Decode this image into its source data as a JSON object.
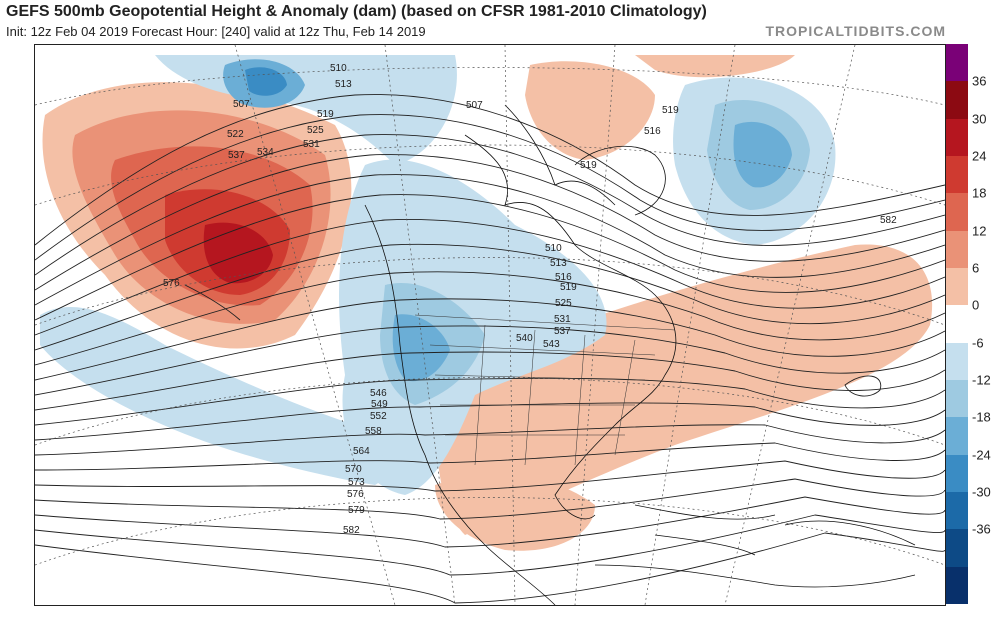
{
  "header": {
    "title": "GEFS 500mb Geopotential Height & Anomaly (dam) (based on CFSR 1981-2010 Climatology)",
    "subtitle": "Init: 12z Feb 04 2019   Forecast Hour: [240]   valid at 12z Thu, Feb 14 2019",
    "credit": "TROPICALTIDBITS.COM"
  },
  "colorbar": {
    "labels": [
      "36",
      "30",
      "24",
      "18",
      "12",
      "6",
      "0",
      "-6",
      "-12",
      "-18",
      "-24",
      "-30",
      "-36"
    ],
    "colors": [
      "#7a0177",
      "#8c0a12",
      "#b5161f",
      "#cf3a30",
      "#de6650",
      "#ea9277",
      "#f4c0a6",
      "#ffffff",
      "#c5dfee",
      "#9ecae1",
      "#6baed6",
      "#3a8cc4",
      "#1c6aa8",
      "#0d4a86",
      "#08306b"
    ]
  },
  "map": {
    "contour_labels": [
      "510",
      "513",
      "507",
      "519",
      "522",
      "525",
      "531",
      "534",
      "537",
      "576",
      "507",
      "519",
      "516",
      "519",
      "510",
      "513",
      "516",
      "519",
      "525",
      "531",
      "537",
      "540",
      "543",
      "546",
      "549",
      "552",
      "558",
      "564",
      "570",
      "573",
      "576",
      "579",
      "582",
      "582"
    ]
  }
}
